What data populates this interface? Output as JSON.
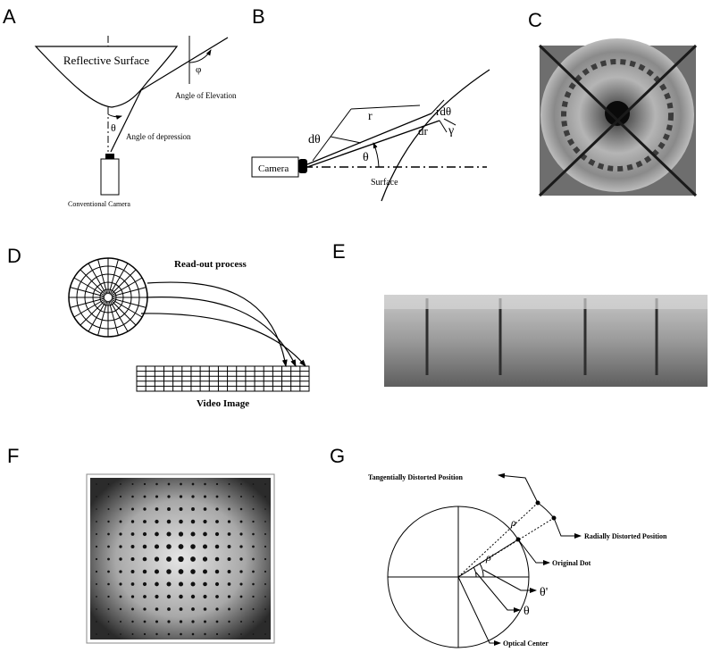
{
  "panels": {
    "A": {
      "letter": "A",
      "reflective_surface": "Reflective Surface",
      "angle_of_elevation": "Angle of Elevation",
      "angle_of_depression": "Angle of depression",
      "conventional_camera": "Conventional Camera",
      "phi": "φ",
      "theta": "θ"
    },
    "B": {
      "letter": "B",
      "camera": "Camera",
      "surface": "Surface",
      "r": "r",
      "d_theta": "dθ",
      "theta": "θ",
      "r_d_theta": "rdθ",
      "dr": "dr",
      "gamma": "γ"
    },
    "C": {
      "letter": "C"
    },
    "D": {
      "letter": "D",
      "readout": "Read-out process",
      "video_image": "Video Image"
    },
    "E": {
      "letter": "E"
    },
    "F": {
      "letter": "F"
    },
    "G": {
      "letter": "G",
      "tangential": "Tangentially Distorted Position",
      "radial": "Radially Distorted Position",
      "original_dot": "Original Dot",
      "optical_center": "Optical Center",
      "rho": "ρ",
      "rho_prime": "ρ'",
      "theta_prime": "θ'",
      "theta": "θ"
    }
  }
}
